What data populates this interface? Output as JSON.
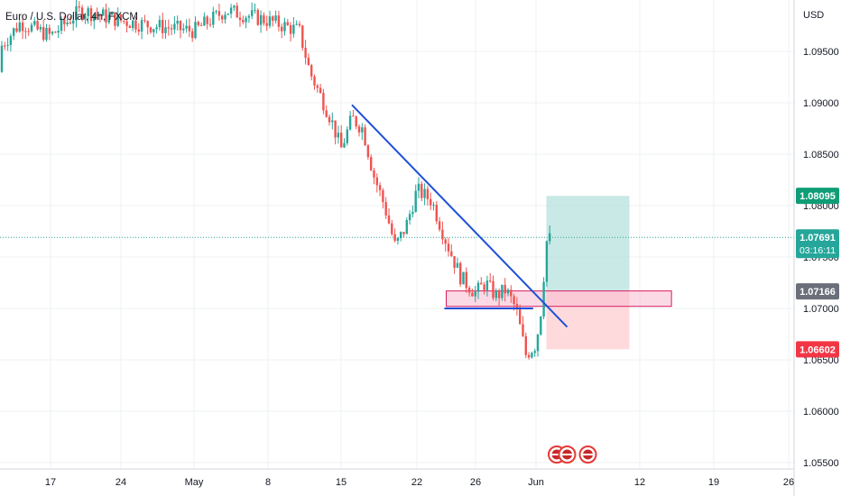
{
  "header": {
    "symbol_label": "Euro / U.S. Dollar, 4h, FXCM"
  },
  "axis": {
    "currency": "USD",
    "price_ticks": [
      "1.09500",
      "1.09000",
      "1.08500",
      "1.08000",
      "1.07500",
      "1.07000",
      "1.06500",
      "1.06000",
      "1.05500"
    ],
    "date_ticks": [
      "17",
      "24",
      "May",
      "8",
      "15",
      "22",
      "26",
      "Jun",
      "12",
      "19",
      "26"
    ]
  },
  "badges": {
    "target": "1.08095",
    "last_price": "1.07691",
    "countdown": "03:16:11",
    "entry": "1.07166",
    "stop": "1.06602"
  },
  "colors": {
    "up": "#26a69a",
    "down": "#ef5350",
    "trendline": "#1e4fd8",
    "target_zone": "#b2dfdb",
    "stop_zone": "#ffcdd2",
    "target_badge": "#0f9d76",
    "entry_badge": "#6b6f7a",
    "stop_badge": "#f23645"
  },
  "chart_data": {
    "type": "candlestick",
    "instrument": "Euro / U.S. Dollar",
    "interval": "4h",
    "source": "FXCM",
    "ylim": [
      1.0545,
      1.099
    ],
    "last_price": 1.07691,
    "trendline": {
      "from": {
        "date": "May 16",
        "price": 1.0898
      },
      "to": {
        "date": "Jun 4",
        "price": 1.0682
      }
    },
    "horizontal_support": {
      "date_from": "May 24",
      "date_to": "May 31",
      "price": 1.07
    },
    "supply_zone": {
      "price_top": 1.0717,
      "price_bottom": 1.0702
    },
    "long_position": {
      "entry": 1.07166,
      "target": 1.08095,
      "stop": 1.06602,
      "date_from": "Jun 2",
      "date_to": "Jun 10"
    },
    "event_markers": [
      "Jun 3",
      "Jun 4",
      "Jun 6"
    ],
    "price_path": [
      {
        "date": "Apr 10",
        "price": 1.093
      },
      {
        "date": "Apr 14",
        "price": 1.0978
      },
      {
        "date": "Apr 17",
        "price": 1.0965
      },
      {
        "date": "Apr 20",
        "price": 1.099
      },
      {
        "date": "Apr 24",
        "price": 1.098
      },
      {
        "date": "Apr 27",
        "price": 1.0975
      },
      {
        "date": "May 1",
        "price": 1.097
      },
      {
        "date": "May 4",
        "price": 1.099
      },
      {
        "date": "May 8",
        "price": 1.098
      },
      {
        "date": "May 11",
        "price": 1.097
      },
      {
        "date": "May 12",
        "price": 1.093
      },
      {
        "date": "May 14",
        "price": 1.0885
      },
      {
        "date": "May 15",
        "price": 1.0855
      },
      {
        "date": "May 16",
        "price": 1.0885
      },
      {
        "date": "May 17",
        "price": 1.0875
      },
      {
        "date": "May 18",
        "price": 1.083
      },
      {
        "date": "May 19",
        "price": 1.08
      },
      {
        "date": "May 20",
        "price": 1.076
      },
      {
        "date": "May 21",
        "price": 1.078
      },
      {
        "date": "May 22",
        "price": 1.0815
      },
      {
        "date": "May 23",
        "price": 1.0805
      },
      {
        "date": "May 24",
        "price": 1.0765
      },
      {
        "date": "May 25",
        "price": 1.073
      },
      {
        "date": "May 26",
        "price": 1.0715
      },
      {
        "date": "May 27",
        "price": 1.0725
      },
      {
        "date": "May 28",
        "price": 1.0712
      },
      {
        "date": "May 29",
        "price": 1.0718
      },
      {
        "date": "May 30",
        "price": 1.07
      },
      {
        "date": "May 31",
        "price": 1.0655
      },
      {
        "date": "Jun 1",
        "price": 1.0665
      },
      {
        "date": "Jun 1.5",
        "price": 1.07
      },
      {
        "date": "Jun 2",
        "price": 1.0765
      },
      {
        "date": "Jun 2.5",
        "price": 1.0769
      }
    ]
  }
}
